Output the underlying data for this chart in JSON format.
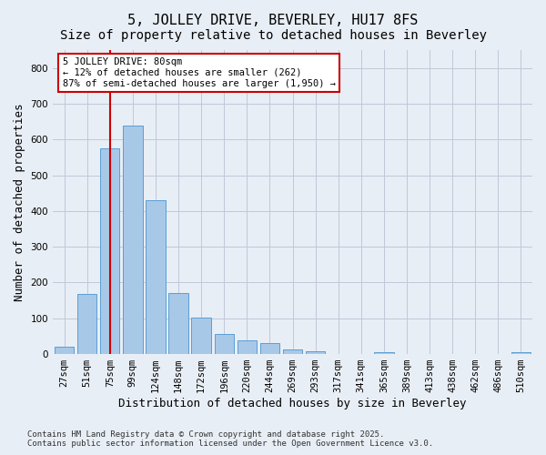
{
  "title": "5, JOLLEY DRIVE, BEVERLEY, HU17 8FS",
  "subtitle": "Size of property relative to detached houses in Beverley",
  "xlabel": "Distribution of detached houses by size in Beverley",
  "ylabel": "Number of detached properties",
  "categories": [
    "27sqm",
    "51sqm",
    "75sqm",
    "99sqm",
    "124sqm",
    "148sqm",
    "172sqm",
    "196sqm",
    "220sqm",
    "244sqm",
    "269sqm",
    "293sqm",
    "317sqm",
    "341sqm",
    "365sqm",
    "389sqm",
    "413sqm",
    "438sqm",
    "462sqm",
    "486sqm",
    "510sqm"
  ],
  "values": [
    20,
    168,
    575,
    640,
    430,
    170,
    103,
    55,
    38,
    30,
    13,
    8,
    0,
    0,
    5,
    0,
    0,
    0,
    0,
    0,
    5
  ],
  "bar_color": "#a8c8e8",
  "bar_edge_color": "#5a9fd4",
  "grid_color": "#c0c8d8",
  "background_color": "#e8eef5",
  "vline_x": 2.0,
  "annotation_text_line1": "5 JOLLEY DRIVE: 80sqm",
  "annotation_text_line2": "← 12% of detached houses are smaller (262)",
  "annotation_text_line3": "87% of semi-detached houses are larger (1,950) →",
  "annotation_box_color": "#ffffff",
  "annotation_box_edge": "#cc0000",
  "vline_color": "#cc0000",
  "ylim": [
    0,
    850
  ],
  "yticks": [
    0,
    100,
    200,
    300,
    400,
    500,
    600,
    700,
    800
  ],
  "footer_line1": "Contains HM Land Registry data © Crown copyright and database right 2025.",
  "footer_line2": "Contains public sector information licensed under the Open Government Licence v3.0.",
  "title_fontsize": 11,
  "subtitle_fontsize": 10,
  "xlabel_fontsize": 9,
  "ylabel_fontsize": 9,
  "tick_fontsize": 7.5,
  "footer_fontsize": 6.5
}
